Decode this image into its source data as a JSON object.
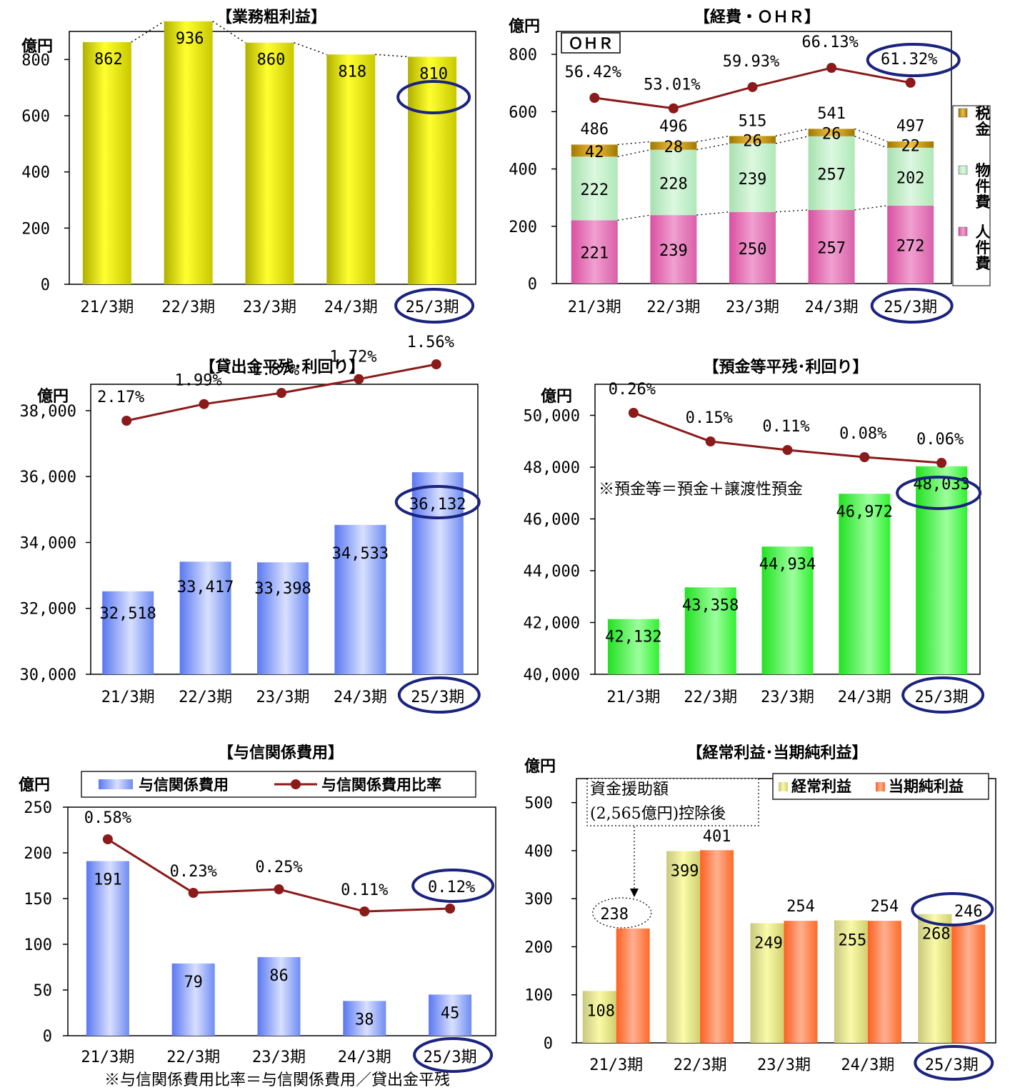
{
  "colors": {
    "line": "#8B1A1A",
    "highlight": "#1a237e",
    "yellow": "#e6e600",
    "zei": "#c8a000",
    "bukken": "#b8ecc0",
    "jinken": "#e066b0",
    "blue": "#6f8cf2",
    "green": "#3cf03c",
    "keijo": "#e8e890",
    "touki": "#ff7f40"
  },
  "chart_data": [
    {
      "id": "gyomu",
      "type": "bar",
      "title": "【業務粗利益】",
      "ylabel": "億円",
      "categories": [
        "21/3期",
        "22/3期",
        "23/3期",
        "24/3期",
        "25/3期"
      ],
      "series": [
        {
          "values": [
            862,
            936,
            860,
            818,
            810
          ]
        }
      ],
      "data_labels": [
        "862",
        "936",
        "860",
        "818",
        "810"
      ],
      "ylim": [
        0,
        900
      ],
      "yticks": [
        0,
        200,
        400,
        600,
        800
      ],
      "ytick_labels": [
        "0",
        "200",
        "400",
        "600",
        "800"
      ],
      "highlight": "25/3期"
    },
    {
      "id": "keihi",
      "type": "bar",
      "title": "【経費・ＯＨＲ】",
      "ylabel": "億円",
      "categories": [
        "21/3期",
        "22/3期",
        "23/3期",
        "24/3期",
        "25/3期"
      ],
      "stack_series": [
        {
          "name": "人件費",
          "values": [
            221,
            239,
            250,
            257,
            272
          ]
        },
        {
          "name": "物件費",
          "values": [
            222,
            228,
            239,
            257,
            202
          ]
        },
        {
          "name": "税金",
          "values": [
            42,
            28,
            26,
            26,
            22
          ]
        }
      ],
      "totals": [
        486,
        496,
        515,
        541,
        497
      ],
      "total_labels": [
        "486",
        "496",
        "515",
        "541",
        "497"
      ],
      "stack_labels": [
        [
          "221",
          "239",
          "250",
          "257",
          "272"
        ],
        [
          "222",
          "228",
          "239",
          "257",
          "202"
        ],
        [
          "42",
          "28",
          "26",
          "26",
          "22"
        ]
      ],
      "line_series": {
        "name": "ＯＨＲ",
        "values": [
          56.42,
          53.01,
          59.93,
          66.13,
          61.32
        ],
        "labels": [
          "56.42%",
          "53.01%",
          "59.93%",
          "66.13%",
          "61.32%"
        ]
      },
      "ylim": [
        0,
        880
      ],
      "yticks": [
        0,
        200,
        400,
        600,
        800
      ],
      "ytick_labels": [
        "0",
        "200",
        "400",
        "600",
        "800"
      ],
      "legend": [
        "税金",
        "物件費",
        "人件費"
      ],
      "legend_position": "right",
      "highlight": "25/3期"
    },
    {
      "id": "kashidashi",
      "type": "bar",
      "title": "【貸出金平残･利回り】",
      "ylabel": "億円",
      "categories": [
        "21/3期",
        "22/3期",
        "23/3期",
        "24/3期",
        "25/3期"
      ],
      "series": [
        {
          "values": [
            32518,
            33417,
            33398,
            34533,
            36132
          ]
        }
      ],
      "data_labels": [
        "32,518",
        "33,417",
        "33,398",
        "34,533",
        "36,132"
      ],
      "line_series": {
        "values": [
          2.17,
          1.99,
          1.87,
          1.72,
          1.56
        ],
        "labels": [
          "2.17%",
          "1.99%",
          "1.87%",
          "1.72%",
          "1.56%"
        ]
      },
      "ylim": [
        30000,
        38800
      ],
      "yticks": [
        30000,
        32000,
        34000,
        36000,
        38000
      ],
      "ytick_labels": [
        "30,000",
        "32,000",
        "34,000",
        "36,000",
        "38,000"
      ],
      "highlight": "25/3期"
    },
    {
      "id": "yokin",
      "type": "bar",
      "title": "【預金等平残･利回り】",
      "ylabel": "億円",
      "categories": [
        "21/3期",
        "22/3期",
        "23/3期",
        "24/3期",
        "25/3期"
      ],
      "series": [
        {
          "values": [
            42132,
            43358,
            44934,
            46972,
            48033
          ]
        }
      ],
      "data_labels": [
        "42,132",
        "43,358",
        "44,934",
        "46,972",
        "48,033"
      ],
      "line_series": {
        "values": [
          0.26,
          0.15,
          0.11,
          0.08,
          0.06
        ],
        "labels": [
          "0.26%",
          "0.15%",
          "0.11%",
          "0.08%",
          "0.06%"
        ]
      },
      "ylim": [
        40000,
        51200
      ],
      "yticks": [
        40000,
        42000,
        44000,
        46000,
        48000,
        50000
      ],
      "ytick_labels": [
        "40,000",
        "42,000",
        "44,000",
        "46,000",
        "48,000",
        "50,000"
      ],
      "annotation": "※預金等＝預金＋譲渡性預金",
      "highlight": "25/3期"
    },
    {
      "id": "yoshin",
      "type": "bar",
      "title": "【与信関係費用】",
      "ylabel": "億円",
      "categories": [
        "21/3期",
        "22/3期",
        "23/3期",
        "24/3期",
        "25/3期"
      ],
      "series": [
        {
          "name": "与信関係費用",
          "values": [
            191,
            79,
            86,
            38,
            45
          ]
        }
      ],
      "data_labels": [
        "191",
        "79",
        "86",
        "38",
        "45"
      ],
      "line_series": {
        "name": "与信関係費用比率",
        "values": [
          0.58,
          0.23,
          0.25,
          0.11,
          0.12
        ],
        "labels": [
          "0.58%",
          "0.23%",
          "0.25%",
          "0.11%",
          "0.12%"
        ]
      },
      "ylim": [
        0,
        250
      ],
      "yticks": [
        0,
        50,
        100,
        150,
        200,
        250
      ],
      "ytick_labels": [
        "0",
        "50",
        "100",
        "150",
        "200",
        "250"
      ],
      "legend": [
        "与信関係費用",
        "与信関係費用比率"
      ],
      "legend_position": "top",
      "footnote": "※与信関係費用比率＝与信関係費用／貸出金平残",
      "highlight": "25/3期"
    },
    {
      "id": "keijo",
      "type": "bar",
      "title": "【経常利益･当期純利益】",
      "ylabel": "億円",
      "categories": [
        "21/3期",
        "22/3期",
        "23/3期",
        "24/3期",
        "25/3期"
      ],
      "series": [
        {
          "name": "経常利益",
          "values": [
            108,
            399,
            249,
            255,
            268
          ],
          "labels": [
            "108",
            "399",
            "249",
            "255",
            "268"
          ]
        },
        {
          "name": "当期純利益",
          "values": [
            238,
            401,
            254,
            254,
            246
          ],
          "labels": [
            "238",
            "401",
            "254",
            "254",
            "246"
          ]
        }
      ],
      "ylim": [
        0,
        550
      ],
      "yticks": [
        0,
        100,
        200,
        300,
        400,
        500
      ],
      "ytick_labels": [
        "0",
        "100",
        "200",
        "300",
        "400",
        "500"
      ],
      "legend": [
        "経常利益",
        "当期純利益"
      ],
      "legend_position": "top-right",
      "callout": [
        "資金援助額",
        "(2,565億円)控除後"
      ],
      "highlight": "25/3期"
    }
  ]
}
